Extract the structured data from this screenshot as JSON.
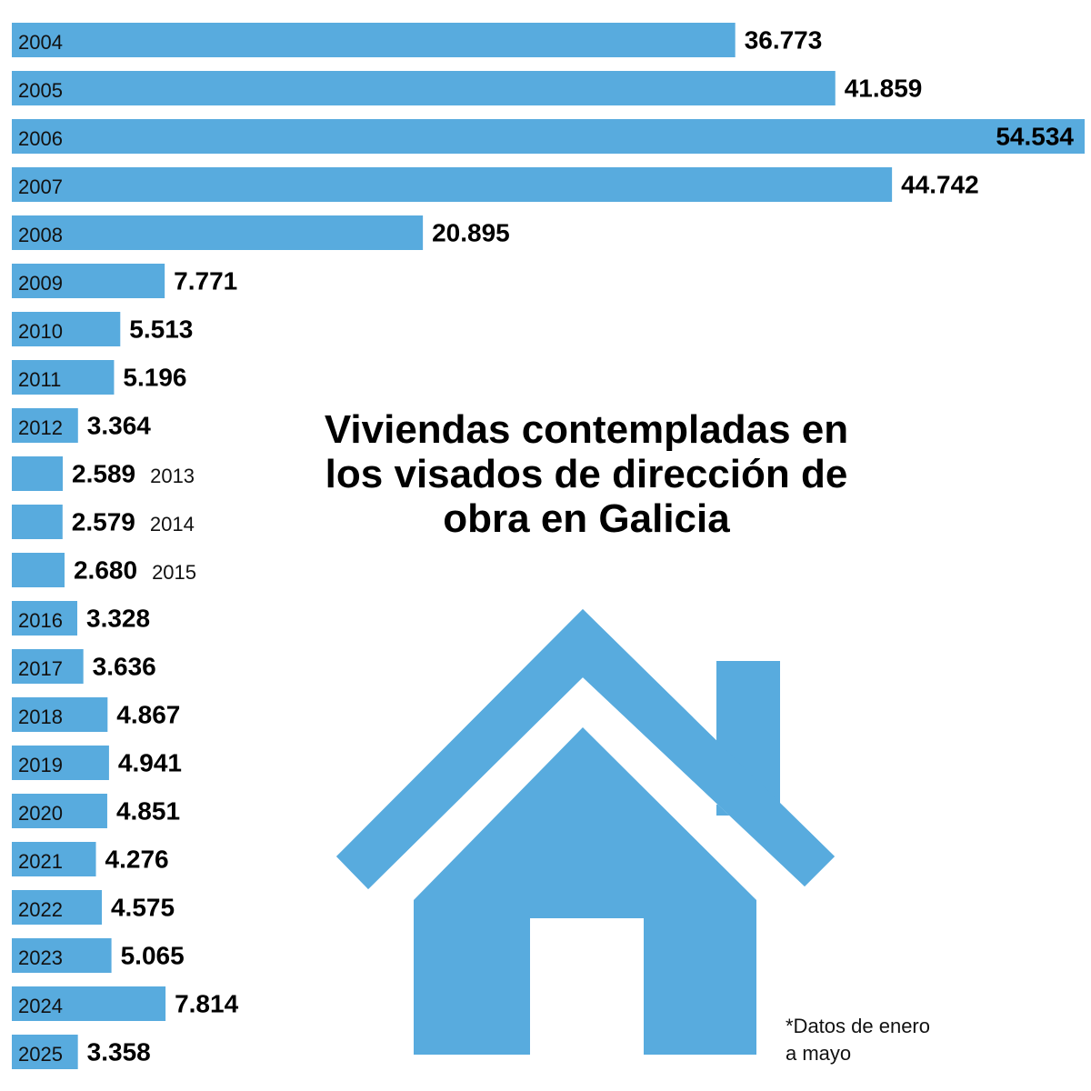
{
  "chart_data": {
    "type": "bar",
    "orientation": "horizontal",
    "color": "#58abde",
    "title": "Viviendas contempladas en los visados de dirección de obra en Galicia",
    "annotation": "*Datos de enero a mayo",
    "categories": [
      "2004",
      "2005",
      "2006",
      "2007",
      "2008",
      "2009",
      "2010",
      "2011",
      "2012",
      "2013",
      "2014",
      "2015",
      "2016",
      "2017",
      "2018",
      "2019",
      "2020",
      "2021",
      "2022",
      "2023",
      "2024",
      "2025"
    ],
    "values": [
      36773,
      41859,
      54534,
      44742,
      20895,
      7771,
      5513,
      5196,
      3364,
      2589,
      2579,
      2680,
      3328,
      3636,
      4867,
      4941,
      4851,
      4276,
      4575,
      5065,
      7814,
      3358
    ],
    "value_labels": [
      "36.773",
      "41.859",
      "54.534",
      "44.742",
      "20.895",
      "7.771",
      "5.513",
      "5.196",
      "3.364",
      "2.589",
      "2.579",
      "2.680",
      "3.328",
      "3.636",
      "4.867",
      "4.941",
      "4.851",
      "4.276",
      "4.575",
      "5.065",
      "7.814",
      "3.358"
    ]
  }
}
